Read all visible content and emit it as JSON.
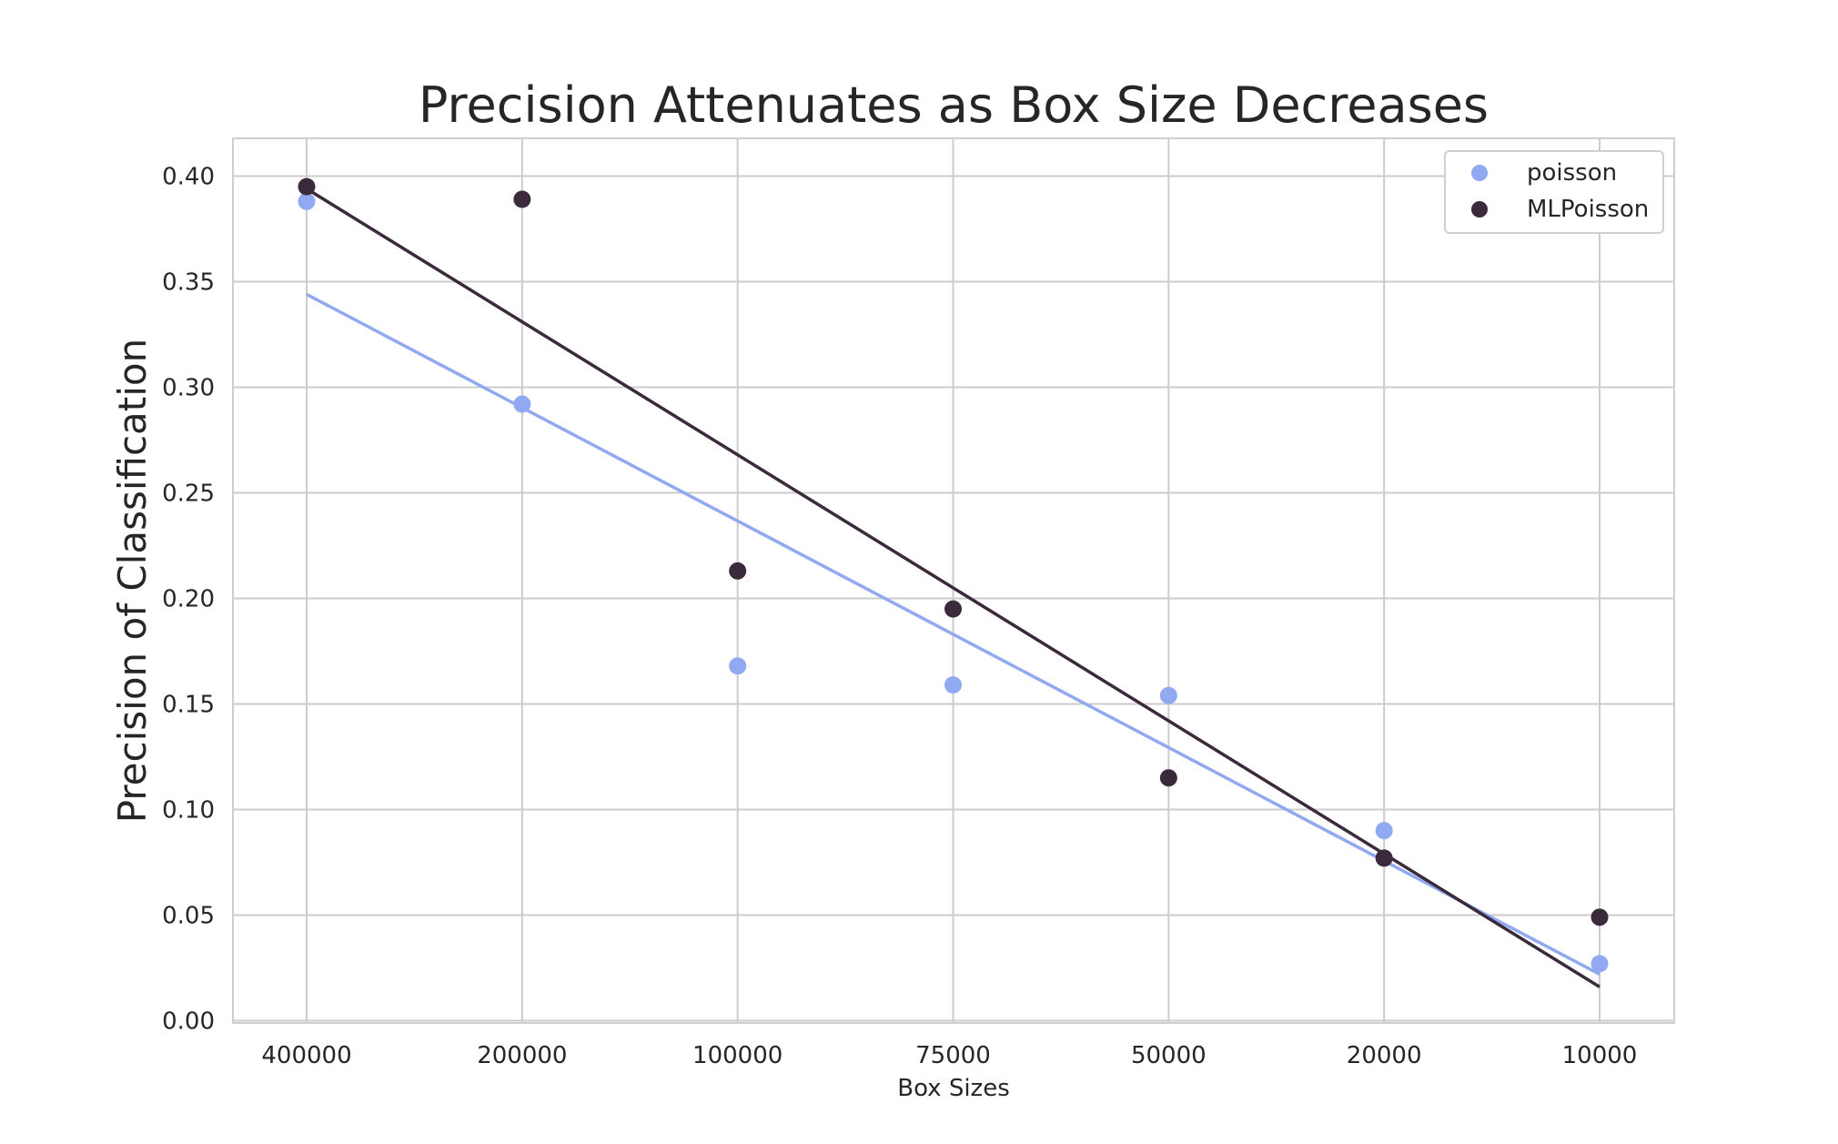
{
  "chart_data": {
    "type": "scatter",
    "title": "Precision Attenuates as Box Size Decreases",
    "xlabel": "Box Sizes",
    "ylabel": "Precision of Classification",
    "categories": [
      "400000",
      "200000",
      "100000",
      "75000",
      "50000",
      "20000",
      "10000"
    ],
    "ylim": [
      0.0,
      0.415
    ],
    "yticks": [
      "0.00",
      "0.05",
      "0.10",
      "0.15",
      "0.20",
      "0.25",
      "0.30",
      "0.35",
      "0.40"
    ],
    "grid": true,
    "legend_position": "top-right",
    "series": [
      {
        "name": "poisson",
        "color": "#91a9f0",
        "values": [
          0.388,
          0.292,
          0.168,
          0.159,
          0.154,
          0.09,
          0.027
        ],
        "trend": [
          0.344,
          0.022
        ]
      },
      {
        "name": "MLPoisson",
        "color": "#3b2a3c",
        "values": [
          0.395,
          0.389,
          0.213,
          0.195,
          0.115,
          0.077,
          0.049
        ],
        "trend": [
          0.394,
          0.016
        ]
      }
    ]
  }
}
